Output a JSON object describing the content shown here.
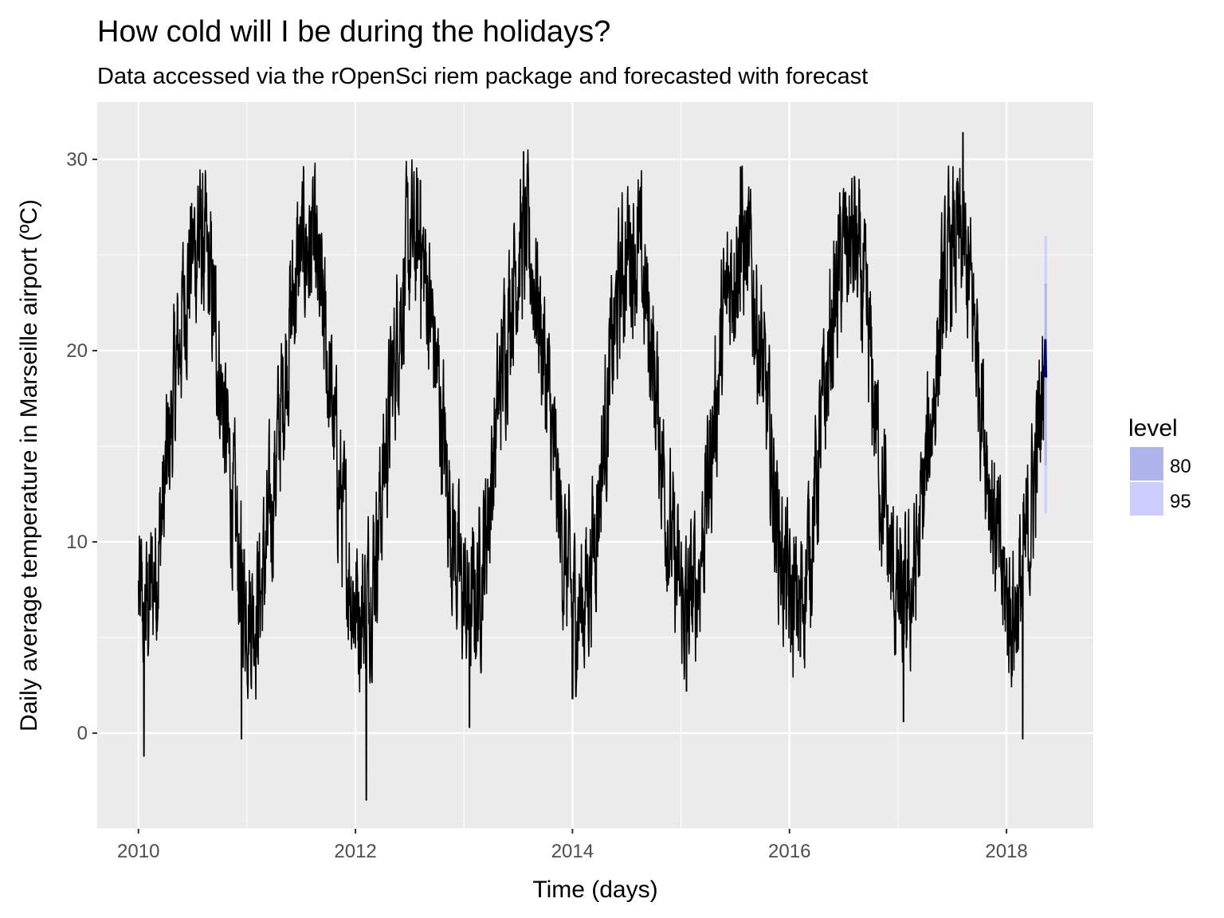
{
  "chart_data": {
    "type": "line",
    "title": "How cold will I be during the holidays?",
    "subtitle": "Data accessed via the rOpenSci riem package and forecasted with forecast",
    "xlabel": "Time (days)",
    "ylabel": "Daily average temperature in Marseille airport (ºC)",
    "xlim": [
      2009.62,
      2018.8
    ],
    "ylim": [
      -5,
      33
    ],
    "x_ticks": [
      2010,
      2012,
      2014,
      2016,
      2018
    ],
    "x_tick_labels": [
      "2010",
      "2012",
      "2014",
      "2016",
      "2018"
    ],
    "x_minor_ticks": [
      2011,
      2013,
      2015,
      2017
    ],
    "y_ticks": [
      0,
      10,
      20,
      30
    ],
    "y_tick_labels": [
      "0",
      "10",
      "20",
      "30"
    ],
    "y_minor_ticks": [
      -5,
      5,
      15,
      25
    ],
    "grid": true,
    "series": [
      {
        "name": "observed daily average temperature",
        "color": "#000000",
        "start": 2010.0,
        "end": 2018.35,
        "seasonal_mean_annual": 16,
        "seasonal_amplitude": 9.5,
        "annual_peaks": [
          {
            "year": 2010.55,
            "max": 28.6
          },
          {
            "year": 2011.6,
            "max": 27.5
          },
          {
            "year": 2012.6,
            "max": 28.9
          },
          {
            "year": 2013.55,
            "max": 30.4
          },
          {
            "year": 2014.6,
            "max": 27.5
          },
          {
            "year": 2015.55,
            "max": 29.6
          },
          {
            "year": 2016.6,
            "max": 29.1
          },
          {
            "year": 2017.6,
            "max": 31.4
          }
        ],
        "annual_troughs": [
          {
            "year": 2010.05,
            "min": -1.2
          },
          {
            "year": 2010.95,
            "min": -0.3
          },
          {
            "year": 2012.1,
            "min": -3.5
          },
          {
            "year": 2013.05,
            "min": 0.3
          },
          {
            "year": 2014.0,
            "min": 1.8
          },
          {
            "year": 2015.05,
            "min": 2.2
          },
          {
            "year": 2016.1,
            "min": 4.0
          },
          {
            "year": 2017.05,
            "min": 0.6
          },
          {
            "year": 2018.15,
            "min": -0.3
          }
        ],
        "last_value": 19.2
      },
      {
        "name": "forecast (point)",
        "color": "#000080",
        "start": 2018.35,
        "end": 2018.37,
        "values": [
          18.6,
          20.6
        ]
      }
    ],
    "forecast_intervals": [
      {
        "level": "80",
        "color": "#b0b4ec",
        "lower": 14.0,
        "upper": 23.5
      },
      {
        "level": "95",
        "color": "#ccceff",
        "lower": 11.5,
        "upper": 26.0
      }
    ],
    "legend": {
      "title": "level",
      "position": "right",
      "entries": [
        {
          "label": "80",
          "color": "#b0b4ec"
        },
        {
          "label": "95",
          "color": "#ccceff"
        }
      ]
    }
  }
}
